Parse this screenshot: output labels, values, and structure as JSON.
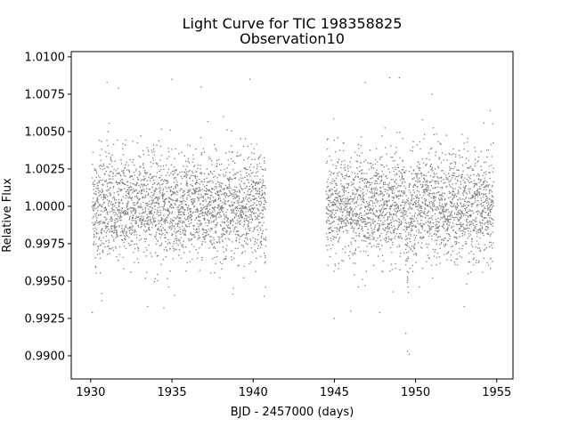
{
  "chart_data": {
    "type": "scatter",
    "title": "Light Curve for TIC 198358825",
    "subtitle": "Observation10",
    "xlabel": "BJD - 2457000 (days)",
    "ylabel": "Relative Flux",
    "xlim": [
      1928.8,
      1956.0
    ],
    "ylim": [
      0.98845,
      1.01035
    ],
    "xticks": [
      1930,
      1935,
      1940,
      1945,
      1950,
      1955
    ],
    "yticks": [
      0.99,
      0.9925,
      0.995,
      0.9975,
      1.0,
      1.0025,
      1.005,
      1.0075,
      1.01
    ],
    "xtick_labels": [
      "1930",
      "1935",
      "1940",
      "1945",
      "1950",
      "1955"
    ],
    "ytick_labels": [
      "0.9900",
      "0.9925",
      "0.9950",
      "0.9975",
      "1.0000",
      "1.0025",
      "1.0050",
      "1.0075",
      "1.0100"
    ],
    "grid": false,
    "marker_color": "#808080",
    "series": [
      {
        "segments": [
          {
            "x_start": 1930.1,
            "x_end": 1940.8,
            "mean": 1.0,
            "scatter": 0.0018
          },
          {
            "x_start": 1944.5,
            "x_end": 1954.8,
            "mean": 1.0,
            "scatter": 0.0018
          }
        ],
        "sample_spacing_days": 0.00139,
        "transit": {
          "center": 1949.5,
          "half_width": 0.12,
          "depth": 0.0045
        },
        "outliers": [
          [
            1931.0,
            1.0083
          ],
          [
            1931.7,
            1.0079
          ],
          [
            1935.0,
            1.0085
          ],
          [
            1936.8,
            1.008
          ],
          [
            1939.8,
            1.0085
          ],
          [
            1930.1,
            0.9929
          ],
          [
            1933.5,
            0.9933
          ],
          [
            1934.5,
            0.9932
          ],
          [
            1945.0,
            0.9925
          ],
          [
            1946.9,
            1.0083
          ],
          [
            1948.4,
            1.0086
          ],
          [
            1949.0,
            1.0086
          ],
          [
            1951.0,
            1.0075
          ],
          [
            1949.5,
            0.9903
          ],
          [
            1949.6,
            0.9901
          ],
          [
            1949.4,
            0.9915
          ],
          [
            1947.8,
            0.9929
          ],
          [
            1946.0,
            0.993
          ],
          [
            1953.0,
            0.9933
          ],
          [
            1954.6,
            1.0064
          ]
        ]
      }
    ]
  }
}
